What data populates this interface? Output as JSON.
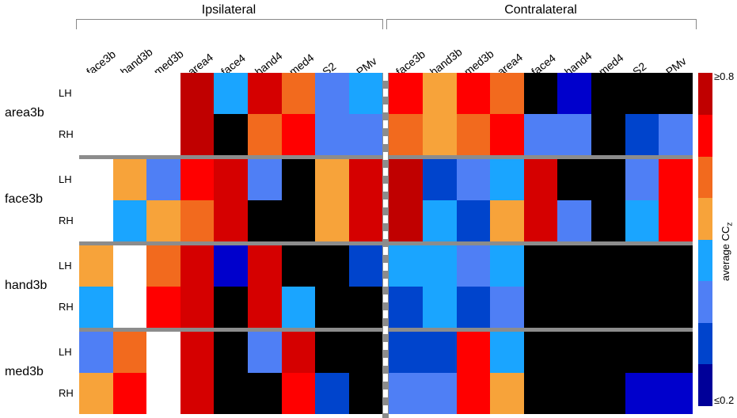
{
  "chart_data": {
    "type": "heatmap",
    "column_groups": [
      "Ipsilateral",
      "Contralateral"
    ],
    "columns": [
      "face3b",
      "hand3b",
      "med3b",
      "area4",
      "face4",
      "hand4",
      "med4",
      "S2",
      "PMv"
    ],
    "row_groups": [
      "area3b",
      "face3b",
      "hand3b",
      "med3b"
    ],
    "hemispheres": [
      "LH",
      "RH"
    ],
    "colorbar": {
      "title": "average CC",
      "title_sub": "z",
      "max_label": "≥0.8",
      "min_label": "≤0.2",
      "colors": [
        "#000099",
        "#0044cc",
        "#4f7ff5",
        "#1aa5ff",
        "#f7a33a",
        "#f26a1e",
        "#ff0000",
        "#c00000"
      ]
    },
    "palette": {
      "w": "#ffffff",
      "k": "#000000",
      "b1": "#0000cc",
      "b2": "#0044cc",
      "b3": "#4f7ff5",
      "b4": "#1aa5ff",
      "o1": "#f7a33a",
      "o2": "#f26a1e",
      "r1": "#ff0000",
      "r2": "#d50000",
      "r3": "#c00000"
    },
    "cells": [
      [
        "w",
        "w",
        "w",
        "r3",
        "b4",
        "r2",
        "o2",
        "b3",
        "b4",
        "r1",
        "o1",
        "r1",
        "o2",
        "k",
        "b1",
        "k",
        "k",
        "k"
      ],
      [
        "w",
        "w",
        "w",
        "r3",
        "k",
        "o2",
        "r1",
        "b3",
        "b3",
        "o2",
        "o1",
        "o2",
        "r1",
        "b3",
        "b3",
        "k",
        "b2",
        "b3"
      ],
      [
        "w",
        "o1",
        "b3",
        "r1",
        "r2",
        "b3",
        "k",
        "o1",
        "r2",
        "r3",
        "b2",
        "b3",
        "b4",
        "r2",
        "k",
        "k",
        "b3",
        "r1"
      ],
      [
        "w",
        "b4",
        "o1",
        "o2",
        "r2",
        "k",
        "k",
        "o1",
        "r2",
        "r3",
        "b4",
        "b2",
        "o1",
        "r2",
        "b3",
        "k",
        "b4",
        "r1"
      ],
      [
        "o1",
        "w",
        "o2",
        "r2",
        "b1",
        "r2",
        "k",
        "k",
        "b2",
        "b4",
        "b4",
        "b3",
        "b4",
        "k",
        "k",
        "k",
        "k",
        "k"
      ],
      [
        "b4",
        "w",
        "r1",
        "r2",
        "k",
        "r2",
        "b4",
        "k",
        "k",
        "b2",
        "b4",
        "b2",
        "b3",
        "k",
        "k",
        "k",
        "k",
        "k"
      ],
      [
        "b3",
        "o2",
        "w",
        "r2",
        "k",
        "b3",
        "r2",
        "k",
        "k",
        "b2",
        "b2",
        "r1",
        "b4",
        "k",
        "k",
        "k",
        "k",
        "k"
      ],
      [
        "o1",
        "r1",
        "w",
        "r2",
        "k",
        "k",
        "r1",
        "b2",
        "k",
        "b3",
        "b3",
        "r1",
        "o1",
        "k",
        "k",
        "k",
        "b1",
        "b1"
      ]
    ]
  }
}
